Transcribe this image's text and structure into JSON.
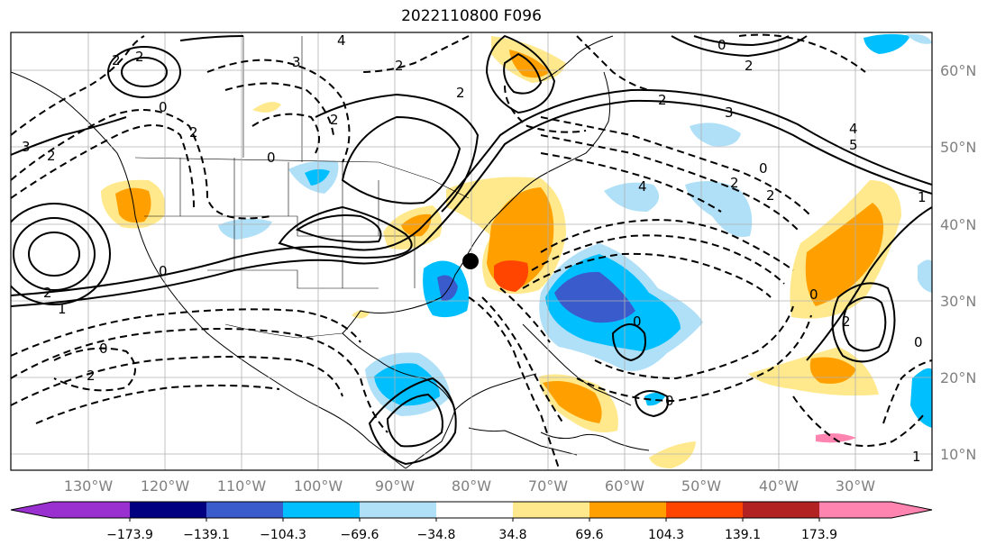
{
  "title": "2022110800 F096",
  "map": {
    "lon_ticks": [
      "130°W",
      "120°W",
      "110°W",
      "100°W",
      "90°W",
      "80°W",
      "70°W",
      "60°W",
      "50°W",
      "40°W",
      "30°W"
    ],
    "lat_ticks": [
      "60°N",
      "50°N",
      "40°N",
      "30°N",
      "20°N",
      "10°N"
    ],
    "lon_range": [
      -138,
      -12
    ],
    "lat_range": [
      8,
      64
    ],
    "marker": {
      "name": "storm-center",
      "lon": -80,
      "lat": 35
    }
  },
  "colorbar": {
    "colors": [
      "#9b30d0",
      "#000080",
      "#3a5bcc",
      "#00bfff",
      "#afe0f8",
      "#ffffff",
      "#ffe98c",
      "#ffa000",
      "#ff4500",
      "#b22222",
      "#ff85b0"
    ],
    "labels": [
      "−173.9",
      "−139.1",
      "−104.3",
      "−69.6",
      "−34.8",
      "34.8",
      "69.6",
      "104.3",
      "139.1",
      "173.9"
    ]
  },
  "contour_labels": [
    "2",
    "0",
    "2",
    "4",
    "3",
    "2",
    "2",
    "0",
    "3",
    "2",
    "2",
    "2",
    "3",
    "4",
    "5",
    "0",
    "2",
    "2",
    "4",
    "0",
    "2",
    "2",
    "1",
    "0",
    "0",
    "2",
    "2",
    "0",
    "0",
    "0",
    "1",
    "2",
    "0",
    "1"
  ]
}
